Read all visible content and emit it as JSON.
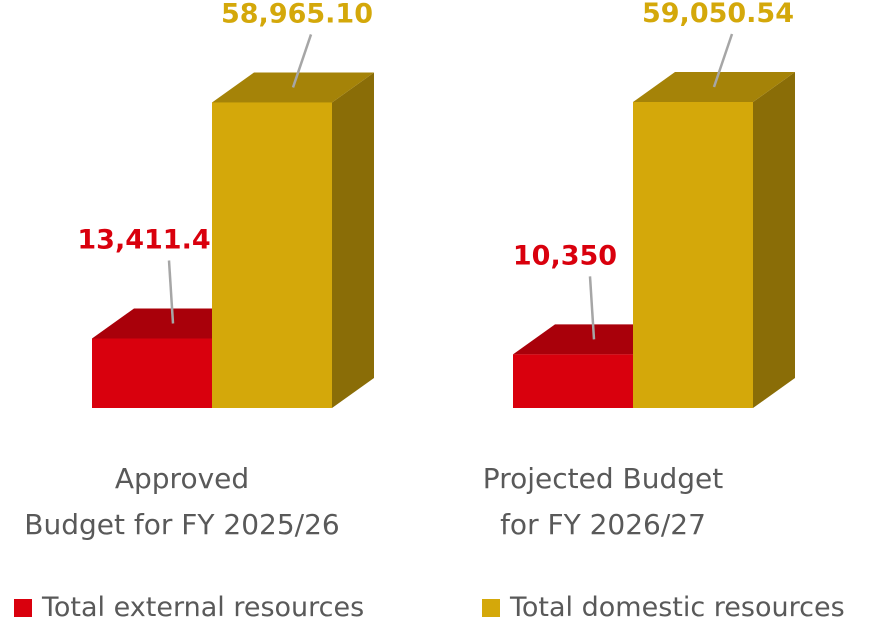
{
  "chart_data": {
    "type": "bar3d",
    "categories": [
      "Approved\nBudget for FY 2025/26",
      "Projected Budget\nfor FY 2026/27"
    ],
    "series": [
      {
        "name": "Total external resources",
        "color": "#d9000d",
        "values": [
          13411.4,
          10350
        ],
        "value_labels": [
          "13,411.4",
          "10,350"
        ]
      },
      {
        "name": "Total domestic resources",
        "color": "#d4a80a",
        "values": [
          58965.1,
          59050.54
        ],
        "value_labels": [
          "58,965.10",
          "59,050.54"
        ]
      }
    ],
    "legend": "bottom"
  }
}
